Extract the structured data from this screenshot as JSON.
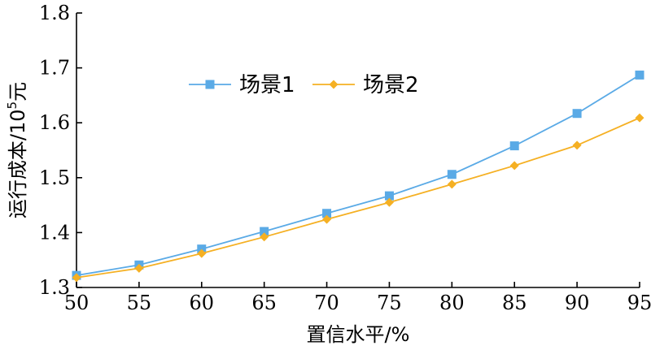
{
  "chart_data": {
    "type": "line",
    "x": [
      50,
      55,
      60,
      65,
      70,
      75,
      80,
      85,
      90,
      95
    ],
    "xticks": [
      50,
      55,
      60,
      65,
      70,
      75,
      80,
      85,
      90,
      95
    ],
    "xlim": [
      50,
      95
    ],
    "yticks": [
      1.3,
      1.4,
      1.5,
      1.6,
      1.7,
      1.8
    ],
    "ytick_labels": [
      "1.3",
      "1.4",
      "1.5",
      "1.6",
      "1.7",
      "1.8"
    ],
    "ylim": [
      1.3,
      1.8
    ],
    "xlabel": "置信水平/%",
    "ylabel": {
      "text": "运行成本/10",
      "sup": "5",
      "unit": "元"
    },
    "legend_position": "upper-middle",
    "grid": false,
    "series": [
      {
        "name": "场景1",
        "color": "#5aaae6",
        "marker": "square",
        "values": [
          1.322,
          1.341,
          1.37,
          1.402,
          1.435,
          1.467,
          1.506,
          1.558,
          1.617,
          1.687
        ]
      },
      {
        "name": "场景2",
        "color": "#f5b023",
        "marker": "diamond",
        "values": [
          1.318,
          1.335,
          1.362,
          1.392,
          1.424,
          1.455,
          1.488,
          1.522,
          1.559,
          1.609
        ]
      }
    ]
  }
}
